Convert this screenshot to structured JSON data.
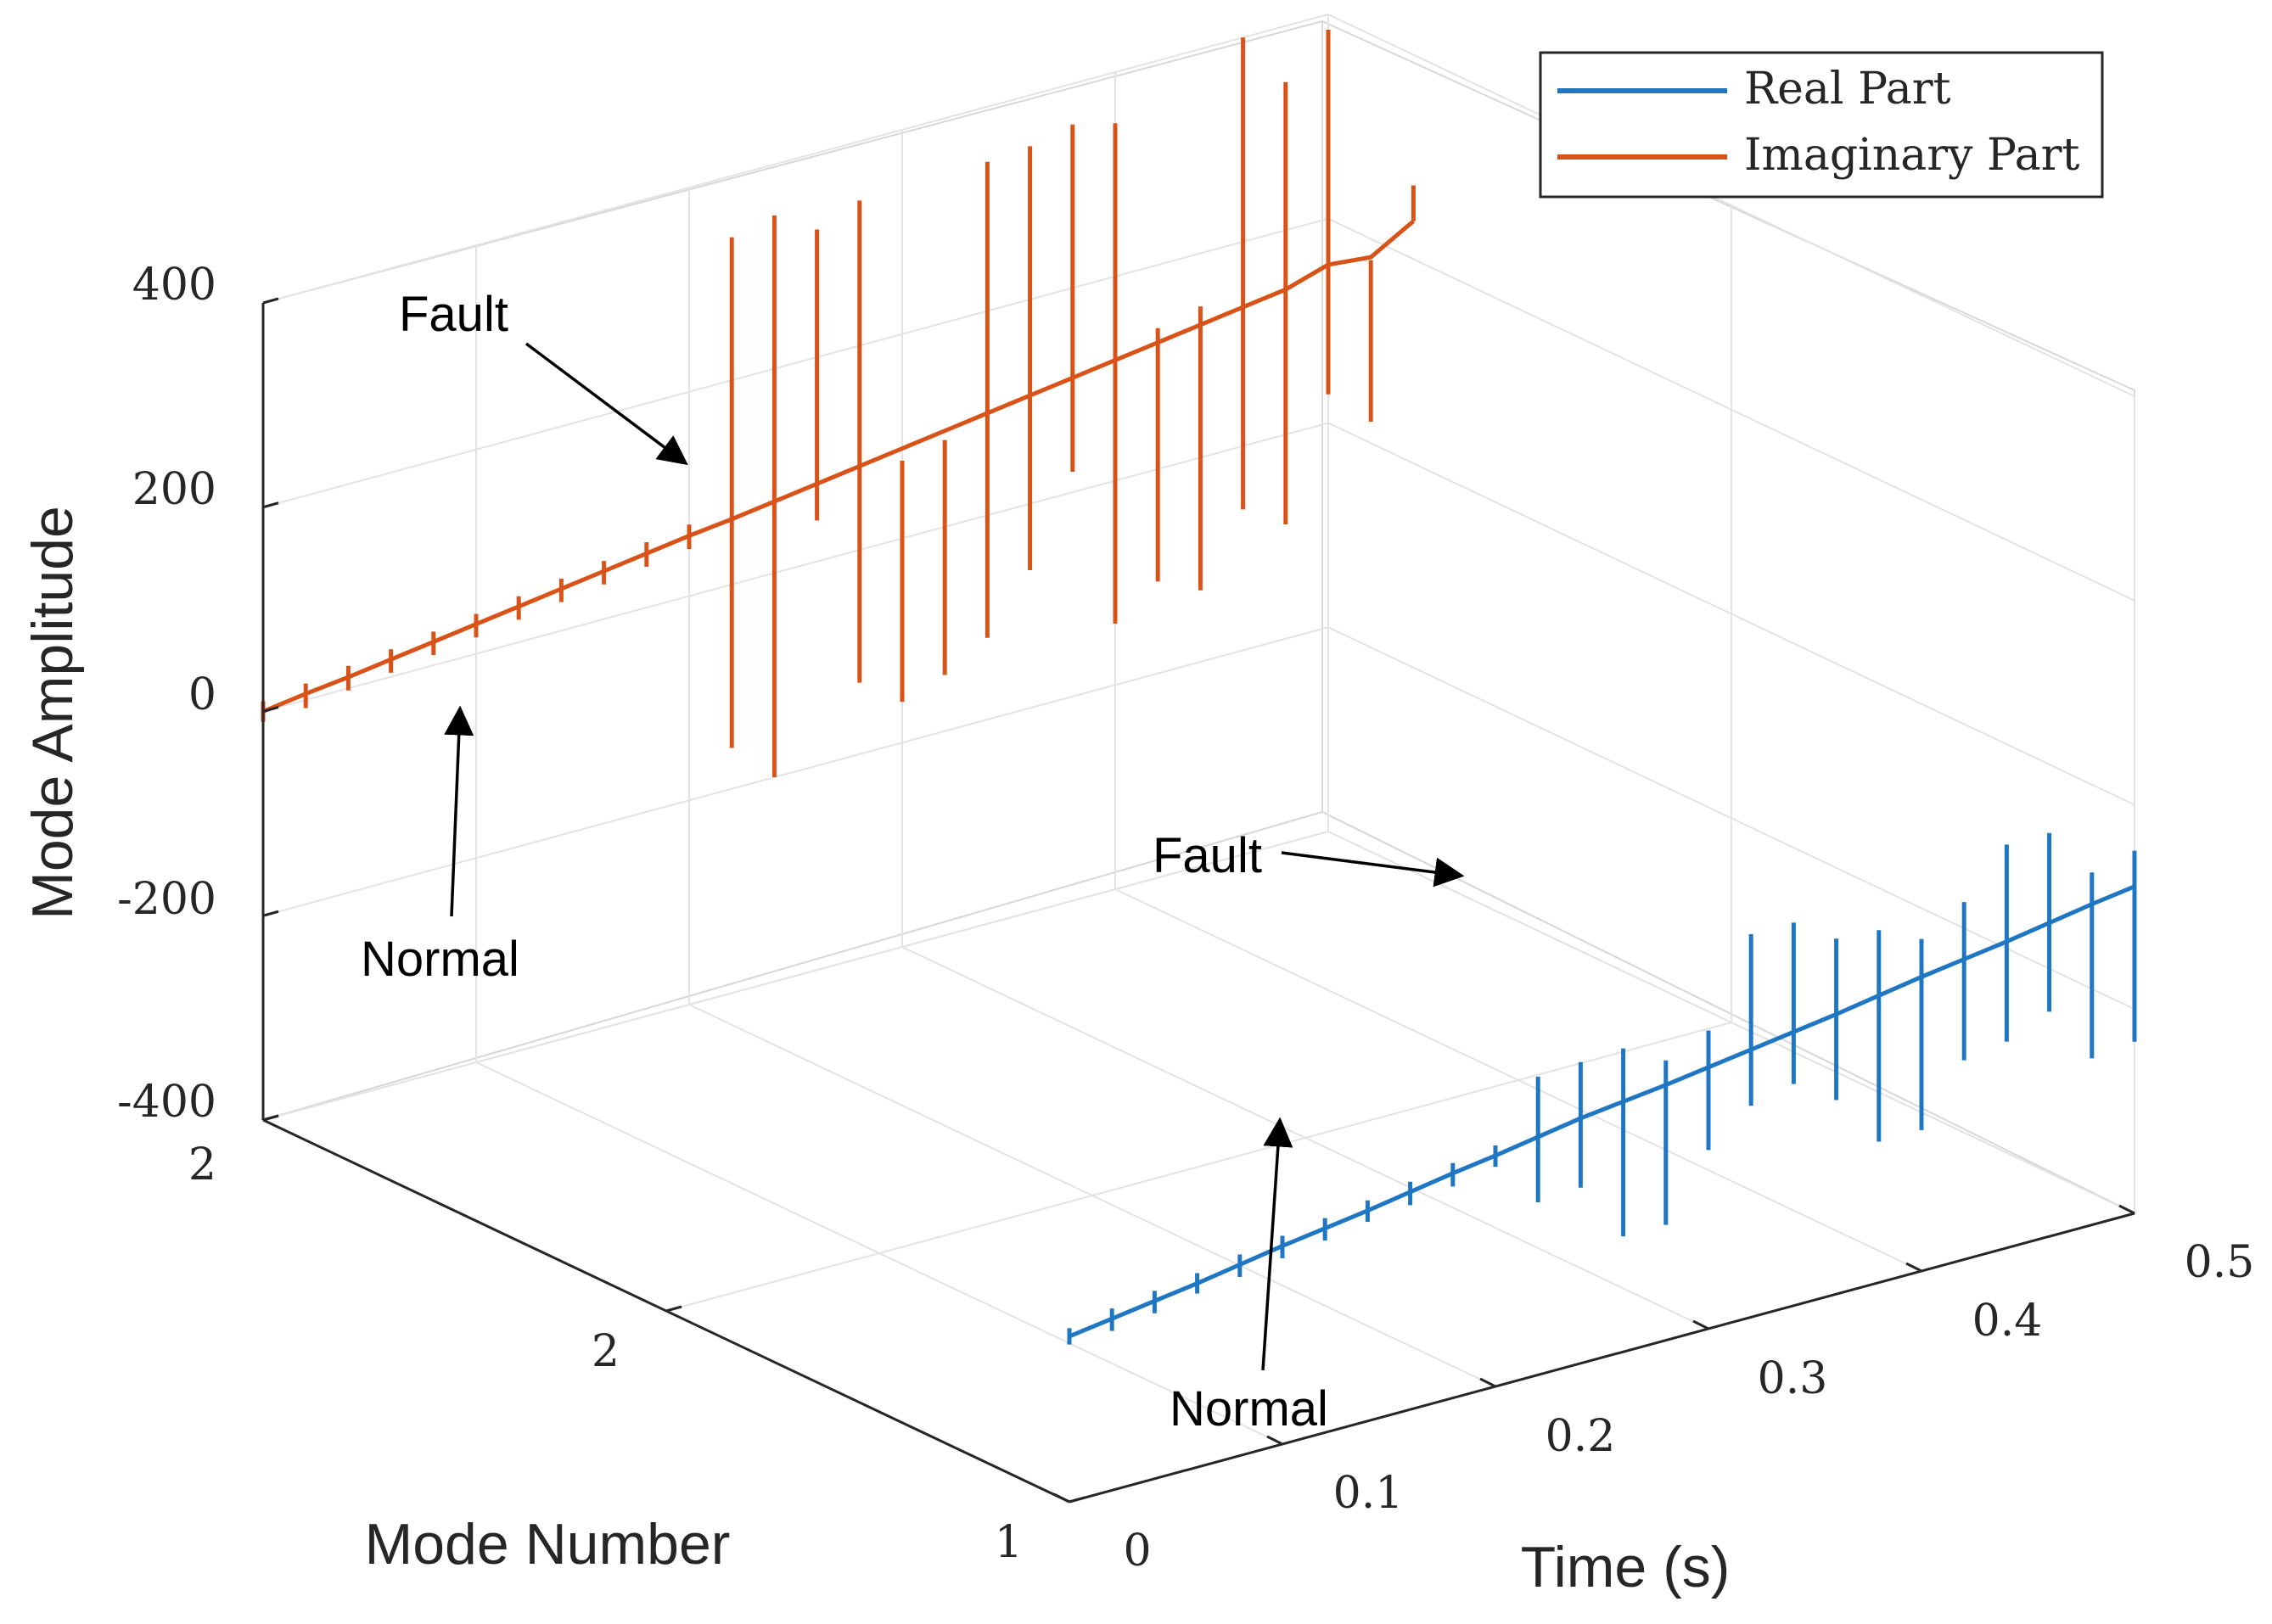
{
  "chart_data": {
    "type": "line",
    "projection": "3d",
    "title": "",
    "xlabel": "Time (s)",
    "ylabel": "Mode Number",
    "zlabel": "Mode Amplitude",
    "xlim": [
      0,
      0.5
    ],
    "ylim": [
      1,
      2
    ],
    "zlim": [
      -400,
      400
    ],
    "x_ticks": [
      "0",
      "0.1",
      "0.2",
      "0.3",
      "0.4",
      "0.5"
    ],
    "y_ticks": [
      "1",
      "2",
      "2"
    ],
    "z_ticks": [
      "400",
      "200",
      "0",
      "-200",
      "-400"
    ],
    "grid": true,
    "legend": {
      "location": "top-right",
      "entries": [
        "Real Part",
        "Imaginary Part"
      ]
    },
    "colors": {
      "real": "#1f77c4",
      "imag": "#d95319",
      "axis": "#262626",
      "grid": "#e3e3e3"
    },
    "series": [
      {
        "name": "Real Part",
        "mode": 1,
        "segments": [
          {
            "t": 0.0,
            "base": -238,
            "lo": -246,
            "hi": -230
          },
          {
            "t": 0.02,
            "base": -232,
            "lo": -244,
            "hi": -222
          },
          {
            "t": 0.04,
            "base": -226,
            "lo": -238,
            "hi": -216
          },
          {
            "t": 0.06,
            "base": -220,
            "lo": -230,
            "hi": -210
          },
          {
            "t": 0.08,
            "base": -213,
            "lo": -225,
            "hi": -203
          },
          {
            "t": 0.1,
            "base": -206,
            "lo": -218,
            "hi": -196
          },
          {
            "t": 0.12,
            "base": -200,
            "lo": -212,
            "hi": -190
          },
          {
            "t": 0.14,
            "base": -194,
            "lo": -205,
            "hi": -184
          },
          {
            "t": 0.16,
            "base": -187,
            "lo": -200,
            "hi": -177
          },
          {
            "t": 0.18,
            "base": -180,
            "lo": -193,
            "hi": -170
          },
          {
            "t": 0.2,
            "base": -174,
            "lo": -185,
            "hi": -164
          },
          {
            "t": 0.22,
            "base": -167,
            "lo": -231,
            "hi": -108
          },
          {
            "t": 0.24,
            "base": -160,
            "lo": -228,
            "hi": -105
          },
          {
            "t": 0.26,
            "base": -155,
            "lo": -287,
            "hi": -103
          },
          {
            "t": 0.28,
            "base": -150,
            "lo": -287,
            "hi": -126
          },
          {
            "t": 0.3,
            "base": -144,
            "lo": -225,
            "hi": -108
          },
          {
            "t": 0.32,
            "base": -138,
            "lo": -193,
            "hi": -25
          },
          {
            "t": 0.34,
            "base": -132,
            "lo": -183,
            "hi": -25
          },
          {
            "t": 0.36,
            "base": -126,
            "lo": -210,
            "hi": -52
          },
          {
            "t": 0.38,
            "base": -119,
            "lo": -262,
            "hi": -55
          },
          {
            "t": 0.4,
            "base": -112,
            "lo": -262,
            "hi": -75
          },
          {
            "t": 0.42,
            "base": -106,
            "lo": -205,
            "hi": -50
          },
          {
            "t": 0.44,
            "base": -100,
            "lo": -198,
            "hi": -5
          },
          {
            "t": 0.46,
            "base": -93,
            "lo": -180,
            "hi": -5
          },
          {
            "t": 0.48,
            "base": -86,
            "lo": -237,
            "hi": -55
          },
          {
            "t": 0.5,
            "base": -80,
            "lo": -232,
            "hi": -45
          }
        ]
      },
      {
        "name": "Imaginary Part",
        "mode": 2,
        "segments": [
          {
            "t": 0.0,
            "base": 0,
            "lo": -10,
            "hi": 10
          },
          {
            "t": 0.02,
            "base": 6,
            "lo": -8,
            "hi": 16
          },
          {
            "t": 0.04,
            "base": 11,
            "lo": -2,
            "hi": 22
          },
          {
            "t": 0.06,
            "base": 17,
            "lo": 4,
            "hi": 27
          },
          {
            "t": 0.08,
            "base": 23,
            "lo": 10,
            "hi": 33
          },
          {
            "t": 0.1,
            "base": 29,
            "lo": 16,
            "hi": 39
          },
          {
            "t": 0.12,
            "base": 35,
            "lo": 22,
            "hi": 45
          },
          {
            "t": 0.14,
            "base": 41,
            "lo": 28,
            "hi": 51
          },
          {
            "t": 0.16,
            "base": 47,
            "lo": 34,
            "hi": 57
          },
          {
            "t": 0.18,
            "base": 53,
            "lo": 40,
            "hi": 64
          },
          {
            "t": 0.2,
            "base": 59,
            "lo": 46,
            "hi": 70
          },
          {
            "t": 0.22,
            "base": 64,
            "lo": -160,
            "hi": 340
          },
          {
            "t": 0.24,
            "base": 70,
            "lo": -200,
            "hi": 350
          },
          {
            "t": 0.26,
            "base": 76,
            "lo": 40,
            "hi": 325
          },
          {
            "t": 0.28,
            "base": 82,
            "lo": -130,
            "hi": 342
          },
          {
            "t": 0.3,
            "base": 88,
            "lo": -160,
            "hi": 76
          },
          {
            "t": 0.32,
            "base": 94,
            "lo": -145,
            "hi": 85
          },
          {
            "t": 0.34,
            "base": 100,
            "lo": -120,
            "hi": 346
          },
          {
            "t": 0.36,
            "base": 106,
            "lo": -65,
            "hi": 350
          },
          {
            "t": 0.38,
            "base": 112,
            "lo": 20,
            "hi": 360
          },
          {
            "t": 0.4,
            "base": 118,
            "lo": -140,
            "hi": 350
          },
          {
            "t": 0.42,
            "base": 124,
            "lo": -110,
            "hi": 138
          },
          {
            "t": 0.44,
            "base": 130,
            "lo": -130,
            "hi": 148
          },
          {
            "t": 0.46,
            "base": 136,
            "lo": -62,
            "hi": 400
          },
          {
            "t": 0.48,
            "base": 142,
            "lo": -88,
            "hi": 345
          },
          {
            "t": 0.5,
            "base": 155,
            "lo": 28,
            "hi": 385
          },
          {
            "t": 0.52,
            "base": 151,
            "lo": -10,
            "hi": 148
          },
          {
            "t": 0.54,
            "base": 175,
            "lo": 175,
            "hi": 210
          }
        ]
      }
    ],
    "annotations": [
      {
        "text": "Fault",
        "target": "Imaginary Part"
      },
      {
        "text": "Normal",
        "target": "Imaginary Part"
      },
      {
        "text": "Fault",
        "target": "Real Part"
      },
      {
        "text": "Normal",
        "target": "Real Part"
      }
    ]
  }
}
